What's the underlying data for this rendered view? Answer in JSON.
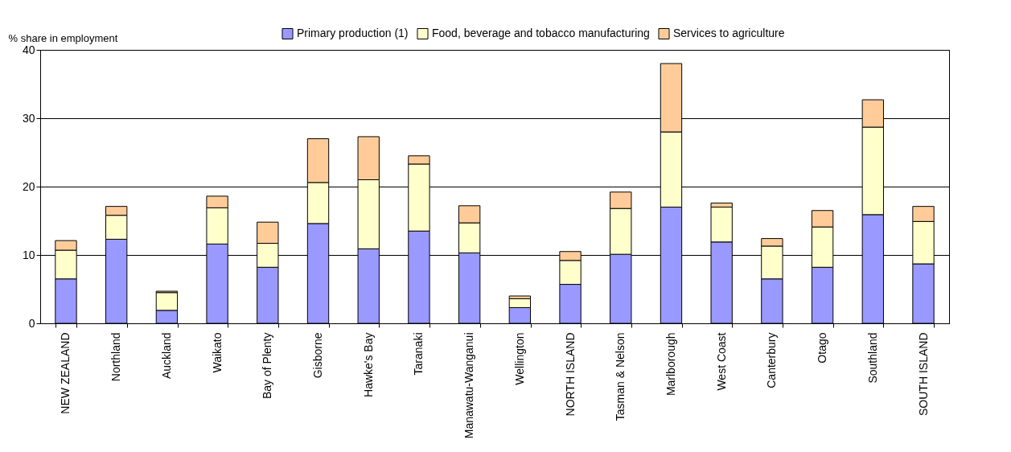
{
  "chart_data": {
    "type": "bar",
    "stacked": true,
    "ylabel": "% share in employment",
    "categories": [
      "NEW ZEALAND",
      "Northland",
      "Auckland",
      "Waikato",
      "Bay of Plenty",
      "Gisborne",
      "Hawke's Bay",
      "Taranaki",
      "Manawatu-Wanganui",
      "Wellington",
      "NORTH ISLAND",
      "Tasman & Nelson",
      "Marlborough",
      "West Coast",
      "Canterbury",
      "Otago",
      "Southland",
      "SOUTH ISLAND"
    ],
    "series": [
      {
        "name": "Primary production (1)",
        "color": "#9999ff",
        "values": [
          6.5,
          12.3,
          1.9,
          11.6,
          8.2,
          14.6,
          10.9,
          13.5,
          10.3,
          2.3,
          5.7,
          10.1,
          17.0,
          11.9,
          6.5,
          8.2,
          15.9,
          8.7
        ]
      },
      {
        "name": "Food, beverage and tobacco manufacturing",
        "color": "#ffffcc",
        "values": [
          4.2,
          3.5,
          2.6,
          5.3,
          3.5,
          6.0,
          10.1,
          9.8,
          4.4,
          1.3,
          3.5,
          6.7,
          11.0,
          5.1,
          4.8,
          5.9,
          12.8,
          6.2
        ]
      },
      {
        "name": "Services to agriculture",
        "color": "#ffcc99",
        "values": [
          1.4,
          1.3,
          0.2,
          1.7,
          3.1,
          6.4,
          6.3,
          1.2,
          2.5,
          0.4,
          1.3,
          2.4,
          10.0,
          0.6,
          1.1,
          2.4,
          4.0,
          2.2
        ]
      }
    ],
    "ylim": [
      0,
      40
    ],
    "yticks": [
      0,
      10,
      20,
      30,
      40
    ],
    "grid": "y",
    "legend": "top"
  }
}
